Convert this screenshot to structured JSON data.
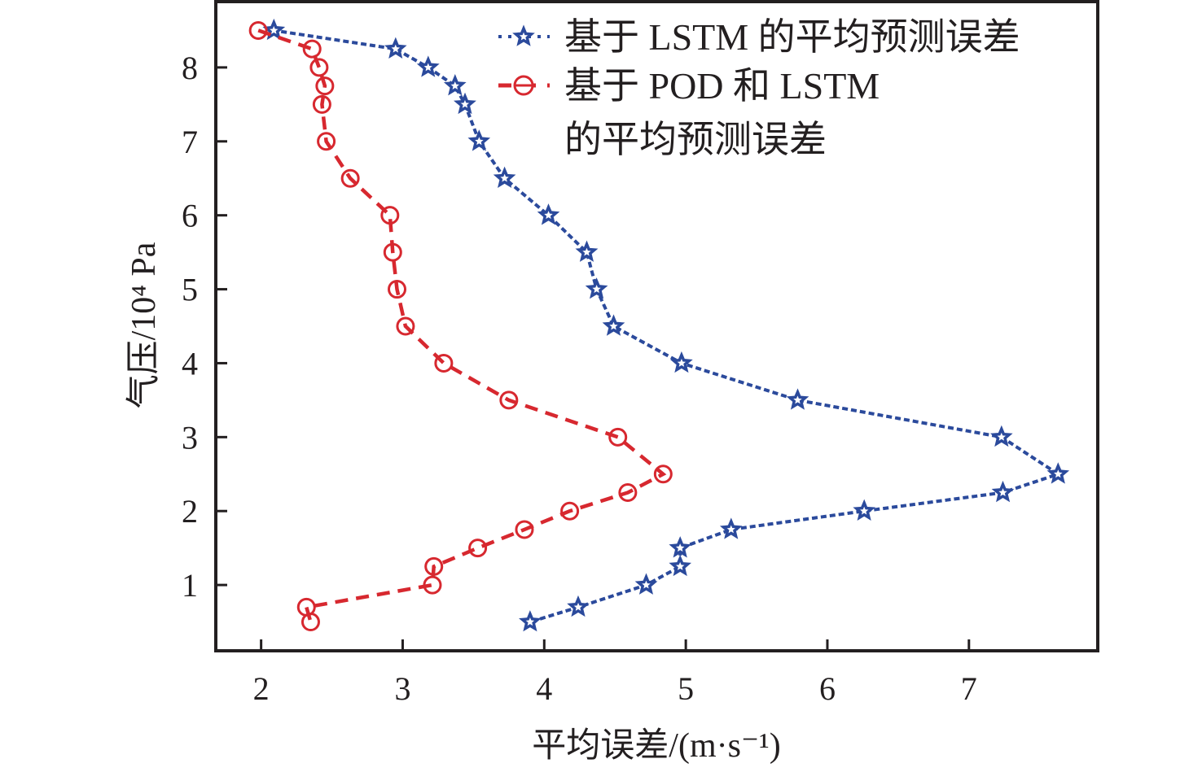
{
  "chart_data": {
    "type": "line",
    "title": "",
    "xlabel": "平均误差/(m·s⁻¹)",
    "ylabel": "气压/10⁴ Pa",
    "xlim": [
      1.68,
      7.91
    ],
    "ylim": [
      0.11,
      8.89
    ],
    "xticks": [
      2,
      3,
      4,
      5,
      6,
      7
    ],
    "yticks": [
      1,
      2,
      3,
      4,
      5,
      6,
      7,
      8
    ],
    "grid": false,
    "legend_position": "top-right",
    "series": [
      {
        "name": "基于 LSTM 的平均预测误差",
        "legend_lines": [
          "基于 LSTM 的平均预测误差"
        ],
        "color": "#2b4a9c",
        "line_style": "dotted",
        "marker": "star",
        "points": [
          {
            "x": 2.09,
            "y": 8.5
          },
          {
            "x": 2.95,
            "y": 8.25
          },
          {
            "x": 3.18,
            "y": 8.0
          },
          {
            "x": 3.37,
            "y": 7.75
          },
          {
            "x": 3.44,
            "y": 7.5
          },
          {
            "x": 3.54,
            "y": 7.0
          },
          {
            "x": 3.72,
            "y": 6.5
          },
          {
            "x": 4.03,
            "y": 6.0
          },
          {
            "x": 4.3,
            "y": 5.5
          },
          {
            "x": 4.37,
            "y": 5.0
          },
          {
            "x": 4.49,
            "y": 4.5
          },
          {
            "x": 4.97,
            "y": 4.0
          },
          {
            "x": 5.79,
            "y": 3.5
          },
          {
            "x": 7.23,
            "y": 3.0
          },
          {
            "x": 7.63,
            "y": 2.5
          },
          {
            "x": 7.24,
            "y": 2.25
          },
          {
            "x": 6.26,
            "y": 2.0
          },
          {
            "x": 5.32,
            "y": 1.75
          },
          {
            "x": 4.96,
            "y": 1.5
          },
          {
            "x": 4.96,
            "y": 1.25
          },
          {
            "x": 4.72,
            "y": 1.0
          },
          {
            "x": 4.24,
            "y": 0.7
          },
          {
            "x": 3.9,
            "y": 0.5
          }
        ]
      },
      {
        "name": "基于 POD 和 LSTM 的平均预测误差",
        "legend_lines": [
          "基于 POD 和 LSTM",
          "的平均预测误差"
        ],
        "color": "#d7282f",
        "line_style": "dashed",
        "marker": "circle",
        "points": [
          {
            "x": 1.98,
            "y": 8.5
          },
          {
            "x": 2.36,
            "y": 8.25
          },
          {
            "x": 2.41,
            "y": 8.0
          },
          {
            "x": 2.45,
            "y": 7.75
          },
          {
            "x": 2.43,
            "y": 7.5
          },
          {
            "x": 2.46,
            "y": 7.0
          },
          {
            "x": 2.63,
            "y": 6.5
          },
          {
            "x": 2.91,
            "y": 6.0
          },
          {
            "x": 2.93,
            "y": 5.5
          },
          {
            "x": 2.96,
            "y": 5.0
          },
          {
            "x": 3.02,
            "y": 4.5
          },
          {
            "x": 3.29,
            "y": 4.0
          },
          {
            "x": 3.75,
            "y": 3.5
          },
          {
            "x": 4.52,
            "y": 3.0
          },
          {
            "x": 4.84,
            "y": 2.5
          },
          {
            "x": 4.59,
            "y": 2.25
          },
          {
            "x": 4.18,
            "y": 2.0
          },
          {
            "x": 3.86,
            "y": 1.75
          },
          {
            "x": 3.53,
            "y": 1.5
          },
          {
            "x": 3.22,
            "y": 1.25
          },
          {
            "x": 3.21,
            "y": 1.0
          },
          {
            "x": 2.32,
            "y": 0.7
          },
          {
            "x": 2.35,
            "y": 0.5
          }
        ]
      }
    ]
  }
}
